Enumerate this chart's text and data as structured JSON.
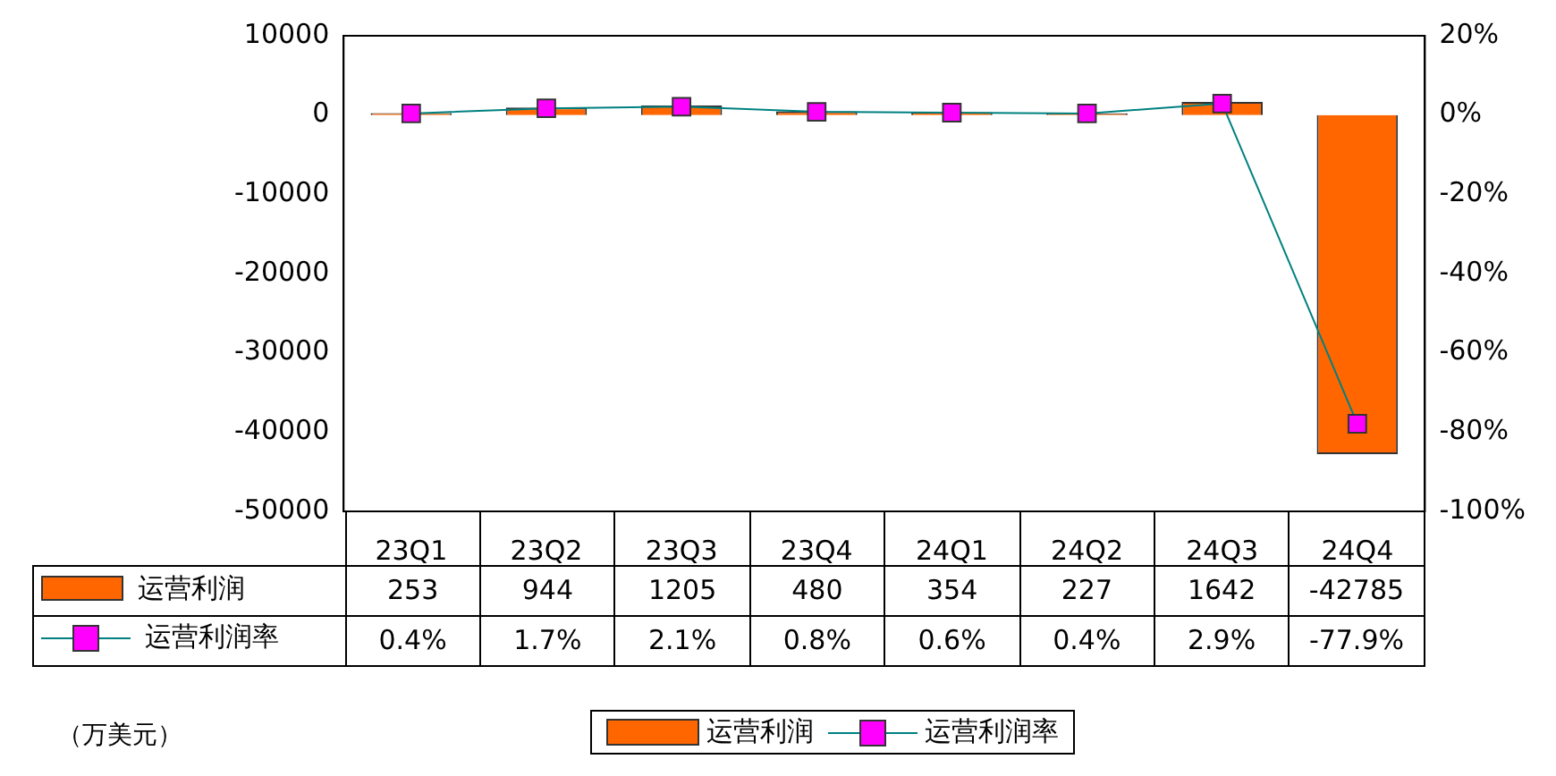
{
  "chart_data": {
    "type": "bar",
    "categories": [
      "23Q1",
      "23Q2",
      "23Q3",
      "23Q4",
      "24Q1",
      "24Q2",
      "24Q3",
      "24Q4"
    ],
    "series": [
      {
        "name": "运营利润",
        "color": "#ff6600",
        "values": [
          253,
          944,
          1205,
          480,
          354,
          227,
          1642,
          -42785
        ],
        "value_labels": [
          "253",
          "944",
          "1205",
          "480",
          "354",
          "227",
          "1642",
          "-42785"
        ]
      },
      {
        "name": "运营利润率",
        "type": "line",
        "axis": "y2",
        "color": "#008080",
        "marker": "square",
        "values": [
          0.4,
          1.7,
          2.1,
          0.8,
          0.6,
          0.4,
          2.9,
          -77.9
        ],
        "value_labels": [
          "0.4%",
          "1.7%",
          "2.1%",
          "0.8%",
          "0.6%",
          "0.4%",
          "2.9%",
          "-77.9%"
        ]
      }
    ],
    "ylim": [
      -50000,
      10000
    ],
    "yticks": [
      -50000,
      -40000,
      -30000,
      -20000,
      -10000,
      0,
      10000
    ],
    "y2lim": [
      -100,
      20
    ],
    "y2ticks": [
      {
        "value": -100,
        "label": "-100%"
      },
      {
        "value": -80,
        "label": "-80%"
      },
      {
        "value": -60,
        "label": "-60%"
      },
      {
        "value": -40,
        "label": "-40%"
      },
      {
        "value": -20,
        "label": "-20%"
      },
      {
        "value": 0,
        "label": "0%"
      },
      {
        "value": 20,
        "label": "20%"
      }
    ],
    "grid": false,
    "legend": "bottom",
    "annotations": [
      "（万美元）"
    ]
  }
}
